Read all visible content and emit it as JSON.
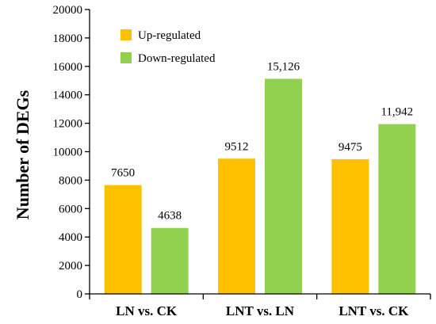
{
  "chart_data": {
    "type": "bar",
    "title": "",
    "xlabel": "",
    "ylabel": "Number of DEGs",
    "ylim": [
      0,
      20000
    ],
    "yticks": [
      0,
      2000,
      4000,
      6000,
      8000,
      10000,
      12000,
      14000,
      16000,
      18000,
      20000
    ],
    "categories": [
      "LN vs. CK",
      "LNT vs. LN",
      "LNT vs. CK"
    ],
    "series": [
      {
        "name": "Up-regulated",
        "color": "#FFC000",
        "values": [
          7650,
          9512,
          9475
        ],
        "labels": [
          "7650",
          "9512",
          "9475"
        ]
      },
      {
        "name": "Down-regulated",
        "color": "#92D050",
        "values": [
          4638,
          15126,
          11942
        ],
        "labels": [
          "4638",
          "15,126",
          "11,942"
        ]
      }
    ],
    "legend_position": "top-left",
    "grid": false
  }
}
